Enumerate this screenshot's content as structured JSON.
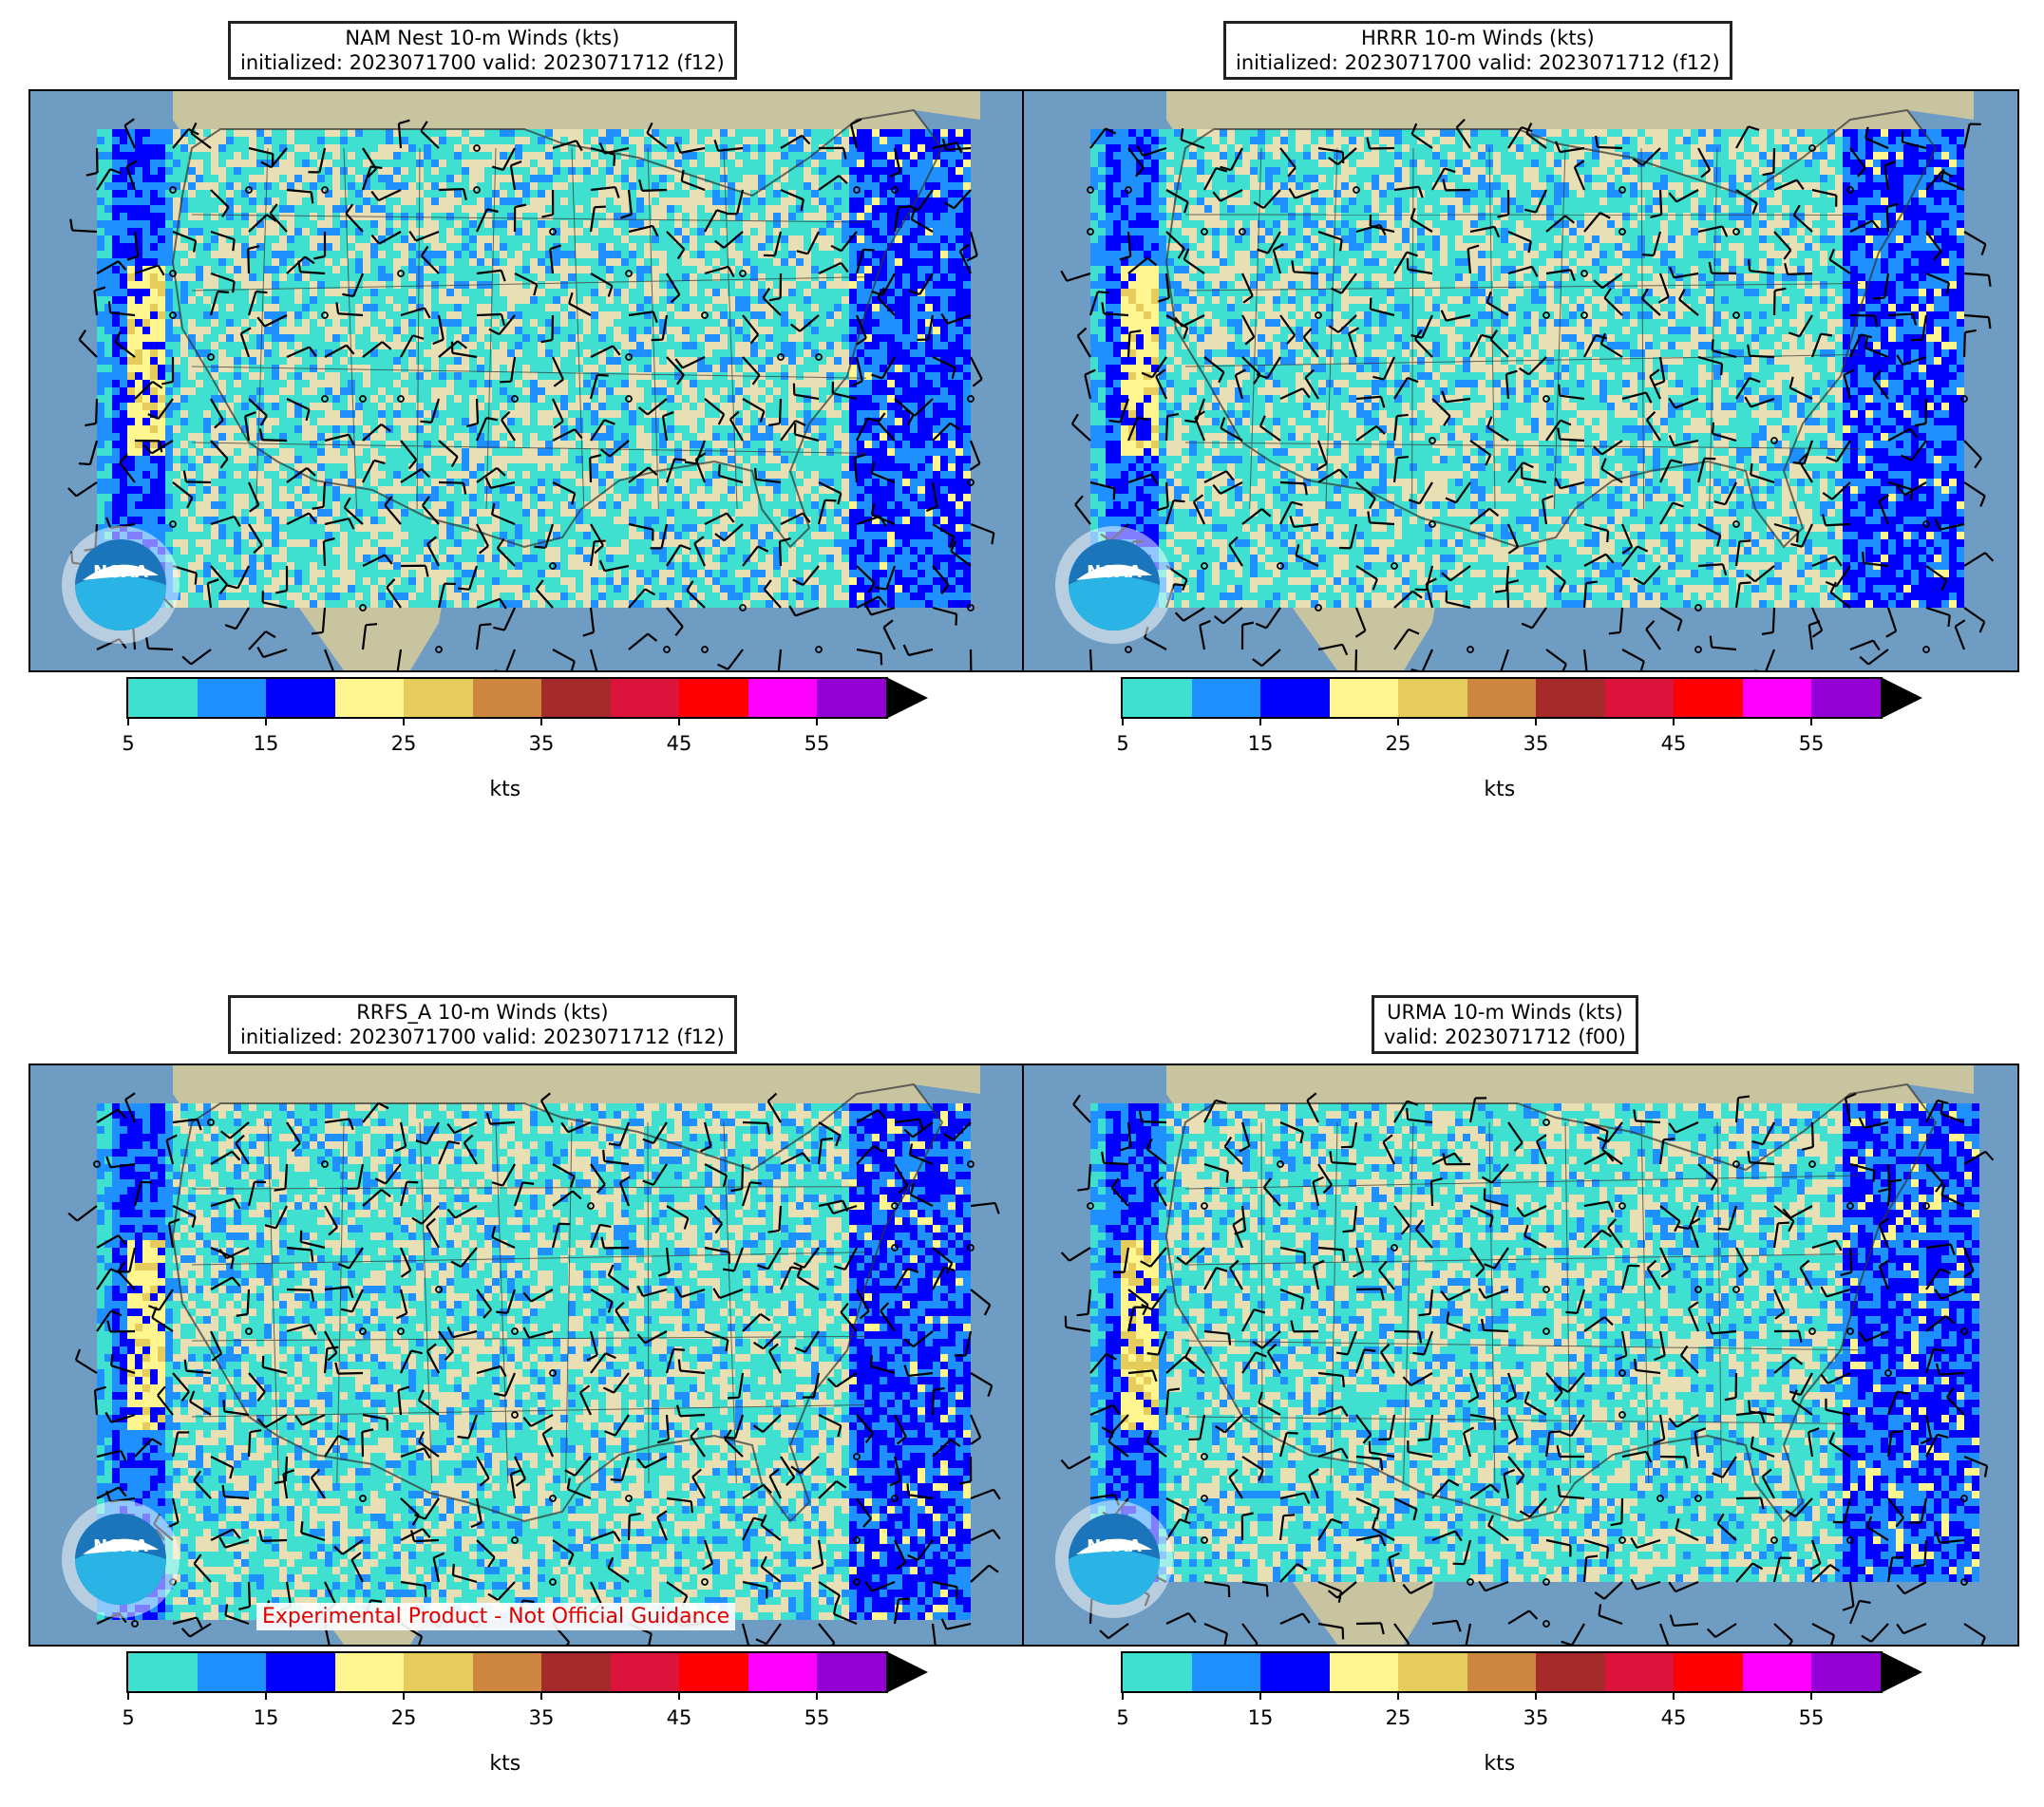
{
  "panels": [
    {
      "id": "nam",
      "title_line1": "NAM Nest 10-m Winds (kts)",
      "title_line2": "initialized: 2023071700 valid: 2023071712 (f12)"
    },
    {
      "id": "hrrr",
      "title_line1": "HRRR 10-m Winds (kts)",
      "title_line2": "initialized: 2023071700 valid: 2023071712 (f12)"
    },
    {
      "id": "rrfs",
      "title_line1": "RRFS_A 10-m Winds (kts)",
      "title_line2": "initialized: 2023071700 valid: 2023071712 (f12)"
    },
    {
      "id": "urma",
      "title_line1": "URMA 10-m Winds (kts)",
      "title_line2": "valid: 2023071712 (f00)"
    }
  ],
  "colorbar": {
    "colors": [
      "#40e0d0",
      "#1e90ff",
      "#0000ff",
      "#fff68f",
      "#e6cc5c",
      "#cd853f",
      "#a52a2a",
      "#dc143c",
      "#ff0000",
      "#ff00ff",
      "#9400d3"
    ],
    "extend_color": "#000000",
    "tick_values": [
      "5",
      "15",
      "25",
      "35",
      "45",
      "55"
    ],
    "unit": "kts"
  },
  "watermark": "Experimental Product - Not Official Guidance",
  "logo_text": "NOAA",
  "colors": {
    "land": "#e8dfb4",
    "ocean": "#6f9cc2",
    "mask_low": "#40e0d0",
    "mask_mid": "#1e90ff",
    "mask_high": "#0000ff"
  }
}
